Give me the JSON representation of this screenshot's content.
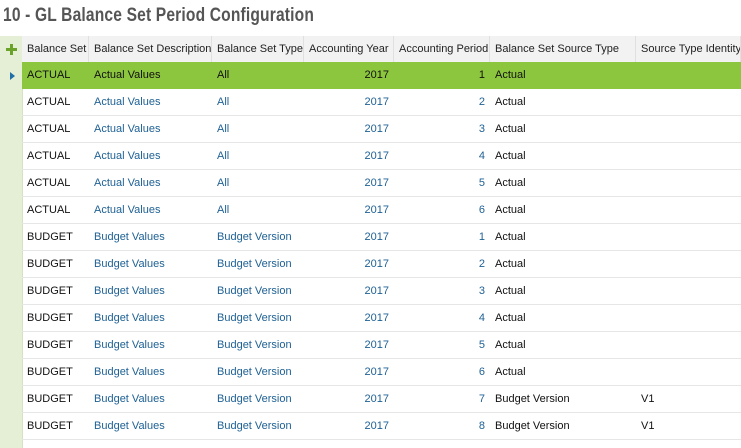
{
  "title": "10 - GL Balance Set Period Configuration",
  "table": {
    "columns": [
      "Balance Set",
      "Balance Set Description",
      "Balance Set Type",
      "Accounting Year",
      "Accounting Period",
      "Balance Set Source Type",
      "Source Type Identity"
    ],
    "rows": [
      [
        "ACTUAL",
        "Actual Values",
        "All",
        2017,
        1,
        "Actual"
      ],
      [
        "ACTUAL",
        "Actual Values",
        "All",
        2017,
        2,
        "Actual"
      ],
      [
        "ACTUAL",
        "Actual Values",
        "All",
        2017,
        3,
        "Actual"
      ],
      [
        "ACTUAL",
        "Actual Values",
        "All",
        2017,
        4,
        "Actual"
      ],
      [
        "ACTUAL",
        "Actual Values",
        "All",
        2017,
        5,
        "Actual"
      ],
      [
        "ACTUAL",
        "Actual Values",
        "All",
        2017,
        6,
        "Actual"
      ],
      [
        "BUDGET",
        "Budget Values",
        "Budget Version",
        2017,
        1,
        "Actual"
      ],
      [
        "BUDGET",
        "Budget Values",
        "Budget Version",
        2017,
        2,
        "Actual"
      ],
      [
        "BUDGET",
        "Budget Values",
        "Budget Version",
        2017,
        3,
        "Actual"
      ],
      [
        "BUDGET",
        "Budget Values",
        "Budget Version",
        2017,
        4,
        "Actual"
      ],
      [
        "BUDGET",
        "Budget Values",
        "Budget Version",
        2017,
        5,
        "Actual"
      ],
      [
        "BUDGET",
        "Budget Values",
        "Budget Version",
        2017,
        6,
        "Actual"
      ],
      [
        "BUDGET",
        "Budget Values",
        "Budget Version",
        2017,
        7,
        "Budget Version",
        "V1"
      ],
      [
        "BUDGET",
        "Budget Values",
        "Budget Version",
        2017,
        8,
        "Budget Version",
        "V1"
      ]
    ]
  }
}
